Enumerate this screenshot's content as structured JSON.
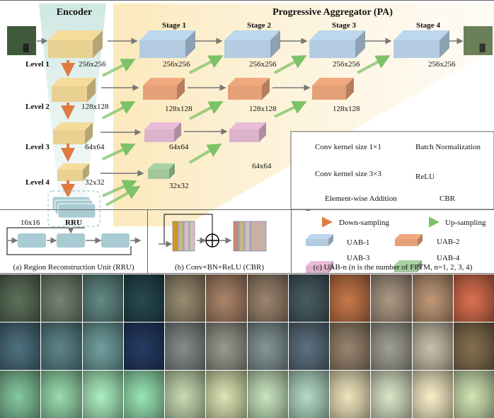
{
  "titles": {
    "encoder": "Encoder",
    "aggregator": "Progressive Aggregator (PA)"
  },
  "stages": [
    "Stage 1",
    "Stage 2",
    "Stage 3",
    "Stage 4"
  ],
  "levels": [
    "Level 1",
    "Level 2",
    "Level 3",
    "Level 4"
  ],
  "encoder_sizes": [
    "256x256",
    "128x128",
    "64x64",
    "32x32",
    "16x16"
  ],
  "rru_label": "RRU",
  "stage_sizes": {
    "row1": [
      "256x256",
      "256x256",
      "256x256",
      "256x256"
    ],
    "row2": [
      "128x128",
      "128x128",
      "128x128"
    ],
    "row3": [
      "64x64",
      "64x64"
    ],
    "row4": [
      "32x32"
    ]
  },
  "legend": {
    "conv1": "Conv kernel size 1×1",
    "bn": "Batch Normalization",
    "conv3": "Conv kernel size 3×3",
    "relu": "ReLU",
    "add": "Element-wise Addition",
    "cbr": "CBR",
    "down": "Down-sampling",
    "up": "Up-sampling"
  },
  "uab_legend": [
    "UAB-1",
    "UAB-2",
    "UAB-3",
    "UAB-4"
  ],
  "captions": {
    "a": "(a) Region Reconstruction Unit (RRU)",
    "b": "(b) Conv+BN+ReLU (CBR)",
    "c": "(c) UAB-n  (n is the number of FPTM, n=1, 2, 3, 4)"
  },
  "colors": {
    "encoder": "#f5dc9a",
    "uab1": "#bcd7ee",
    "uab2": "#f2a87e",
    "uab3": "#e8bcd6",
    "uab4": "#a9d3a4",
    "down_arrow": "#e07a40",
    "up_arrow": "#7cc266",
    "encoder_bg": "#d6ece8",
    "pa_bg": "#fbecc8"
  }
}
